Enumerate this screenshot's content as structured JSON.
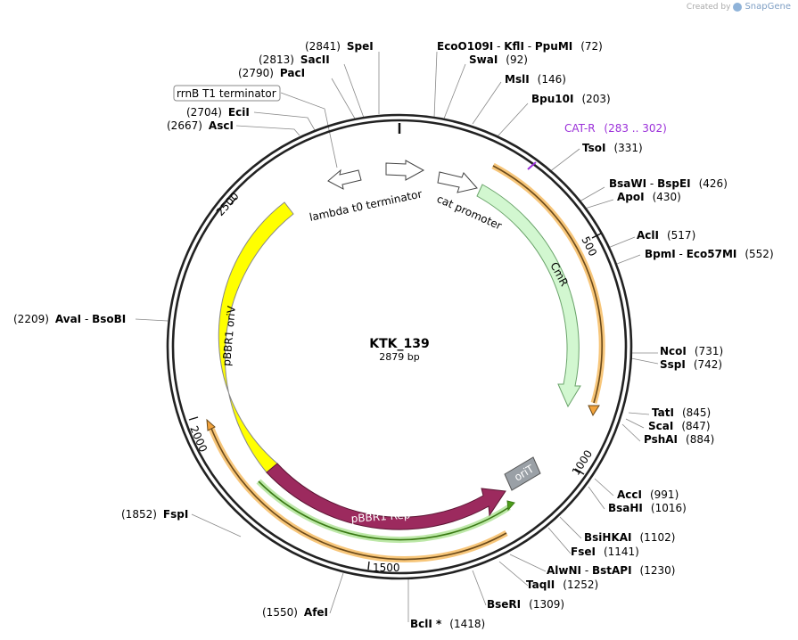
{
  "credit": {
    "created_by": "Created by",
    "brand": "SnapGene"
  },
  "center": {
    "name": "KTK_139",
    "length": "2879 bp"
  },
  "colors": {
    "backbone": "#222222",
    "orange_primer": "#f2a33c",
    "cmr": "#d2f7d0",
    "ori_v": "#ffff00",
    "rep": "#9c2a5e",
    "oriT": "#9aa0a6",
    "green_primer": "#4d9e1a",
    "catr_label": "#9b30d9"
  },
  "ticks": [
    "500",
    "1000",
    "1500",
    "2000",
    "2500"
  ],
  "features": {
    "rrnB": "rrnB T1 terminator",
    "lambda": "lambda t0 terminator",
    "cat_promoter": "cat promoter",
    "cmr": "CmR",
    "ori_v": "pBBR1 oriV",
    "rep": "pBBR1 Rep",
    "oriT": "oriT",
    "cat_r": {
      "name": "CAT-R",
      "range": "(283 .. 302)"
    }
  },
  "sites": {
    "speI": {
      "pos": "(2841)",
      "name": "SpeI"
    },
    "sacII": {
      "pos": "(2813)",
      "name": "SacII"
    },
    "pacI": {
      "pos": "(2790)",
      "name": "PacI"
    },
    "eciI": {
      "pos": "(2704)",
      "name": "EciI"
    },
    "ascI": {
      "pos": "(2667)",
      "name": "AscI"
    },
    "eco": {
      "name": "EcoO109I",
      "sep1": " - ",
      "name2": "KflI",
      "sep2": " - ",
      "name3": "PpuMI",
      "pos": "(72)"
    },
    "swaI": {
      "name": "SwaI",
      "pos": "(92)"
    },
    "mslI": {
      "name": "MslI",
      "pos": "(146)"
    },
    "bpu10I": {
      "name": "Bpu10I",
      "pos": "(203)"
    },
    "tsoI": {
      "name": "TsoI",
      "pos": "(331)"
    },
    "bsaWI": {
      "name": "BsaWI",
      "sep": " - ",
      "name2": "BspEI",
      "pos": "(426)"
    },
    "apoI": {
      "name": "ApoI",
      "pos": "(430)"
    },
    "aclI": {
      "name": "AclI",
      "pos": "(517)"
    },
    "bpmI": {
      "name": "BpmI",
      "sep": " - ",
      "name2": "Eco57MI",
      "pos": "(552)"
    },
    "ncoI": {
      "name": "NcoI",
      "pos": "(731)"
    },
    "sspI": {
      "name": "SspI",
      "pos": "(742)"
    },
    "tatI": {
      "name": "TatI",
      "pos": "(845)"
    },
    "scaI": {
      "name": "ScaI",
      "pos": "(847)"
    },
    "pshAI": {
      "name": "PshAI",
      "pos": "(884)"
    },
    "accI": {
      "name": "AccI",
      "pos": "(991)"
    },
    "bsaHI": {
      "name": "BsaHI",
      "pos": "(1016)"
    },
    "bsiHKAI": {
      "name": "BsiHKAI",
      "pos": "(1102)"
    },
    "fseI": {
      "name": "FseI",
      "pos": "(1141)"
    },
    "alwNI": {
      "name": "AlwNI",
      "sep": " - ",
      "name2": "BstAPI",
      "pos": "(1230)"
    },
    "taqII": {
      "name": "TaqII",
      "pos": "(1252)"
    },
    "bseRI": {
      "name": "BseRI",
      "pos": "(1309)"
    },
    "bclI": {
      "name": "BclI *",
      "pos": "(1418)"
    },
    "afeI": {
      "pos": "(1550)",
      "name": "AfeI"
    },
    "fspI": {
      "pos": "(1852)",
      "name": "FspI"
    },
    "avaI": {
      "pos": "(2209)",
      "name": "AvaI",
      "sep": " - ",
      "name2": "BsoBI"
    }
  }
}
